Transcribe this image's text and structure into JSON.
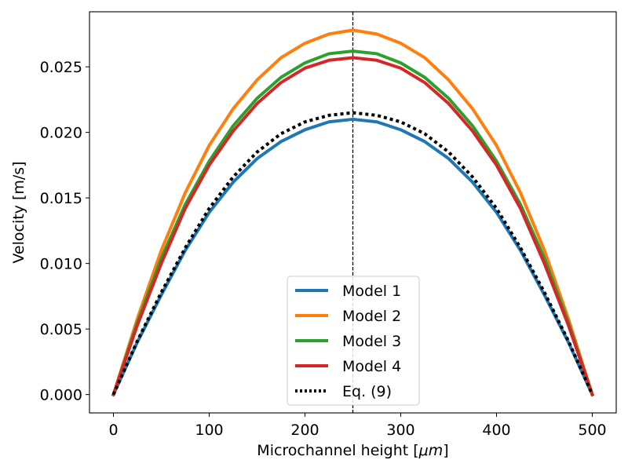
{
  "chart_data": {
    "type": "line",
    "title": "",
    "xlabel_prefix": "Microchannel height [",
    "xlabel_math": "μm",
    "xlabel_suffix": "]",
    "ylabel": "Velocity [m/s]",
    "xlim": [
      -25,
      525
    ],
    "ylim": [
      -0.0014,
      0.0292
    ],
    "xticks": [
      0,
      100,
      200,
      300,
      400,
      500
    ],
    "xtick_labels": [
      "0",
      "100",
      "200",
      "300",
      "400",
      "500"
    ],
    "yticks": [
      0.0,
      0.005,
      0.01,
      0.015,
      0.02,
      0.025
    ],
    "ytick_labels": [
      "0.000",
      "0.005",
      "0.010",
      "0.015",
      "0.020",
      "0.025"
    ],
    "vline_x": 250,
    "legend_position": "lower-center",
    "x": [
      0,
      25,
      50,
      75,
      100,
      125,
      150,
      175,
      200,
      225,
      250,
      275,
      300,
      325,
      350,
      375,
      400,
      425,
      450,
      475,
      500
    ],
    "series": [
      {
        "name": "Model 1",
        "color": "#1f77b4",
        "style": "solid",
        "values": [
          0.0,
          0.004,
          0.0076,
          0.011,
          0.0139,
          0.0162,
          0.018,
          0.0193,
          0.0202,
          0.0208,
          0.021,
          0.0208,
          0.0202,
          0.0193,
          0.018,
          0.0162,
          0.0139,
          0.011,
          0.0076,
          0.004,
          0.0
        ]
      },
      {
        "name": "Model 2",
        "color": "#ff7f0e",
        "style": "solid",
        "values": [
          0.0,
          0.0058,
          0.011,
          0.0154,
          0.019,
          0.0218,
          0.024,
          0.0257,
          0.0268,
          0.0275,
          0.0278,
          0.0275,
          0.0268,
          0.0257,
          0.024,
          0.0218,
          0.019,
          0.0154,
          0.011,
          0.0058,
          0.0
        ]
      },
      {
        "name": "Model 3",
        "color": "#2ca02c",
        "style": "solid",
        "values": [
          0.0,
          0.0055,
          0.0104,
          0.0145,
          0.0178,
          0.0205,
          0.0226,
          0.0242,
          0.0253,
          0.026,
          0.0262,
          0.026,
          0.0253,
          0.0242,
          0.0226,
          0.0205,
          0.0178,
          0.0145,
          0.0104,
          0.0055,
          0.0
        ]
      },
      {
        "name": "Model 4",
        "color": "#d62728",
        "style": "solid",
        "values": [
          0.0,
          0.0053,
          0.01,
          0.0142,
          0.0175,
          0.0201,
          0.0222,
          0.0238,
          0.0249,
          0.0255,
          0.0257,
          0.0255,
          0.0249,
          0.0238,
          0.0222,
          0.0201,
          0.0175,
          0.0142,
          0.01,
          0.0053,
          0.0
        ]
      },
      {
        "name": "Eq. (9)",
        "color": "#000000",
        "style": "dotted",
        "values": [
          0.0,
          0.0041,
          0.0078,
          0.0112,
          0.0142,
          0.0166,
          0.0185,
          0.0199,
          0.0208,
          0.0213,
          0.0215,
          0.0213,
          0.0208,
          0.0199,
          0.0185,
          0.0166,
          0.0142,
          0.0112,
          0.0078,
          0.0041,
          0.0
        ]
      }
    ]
  }
}
